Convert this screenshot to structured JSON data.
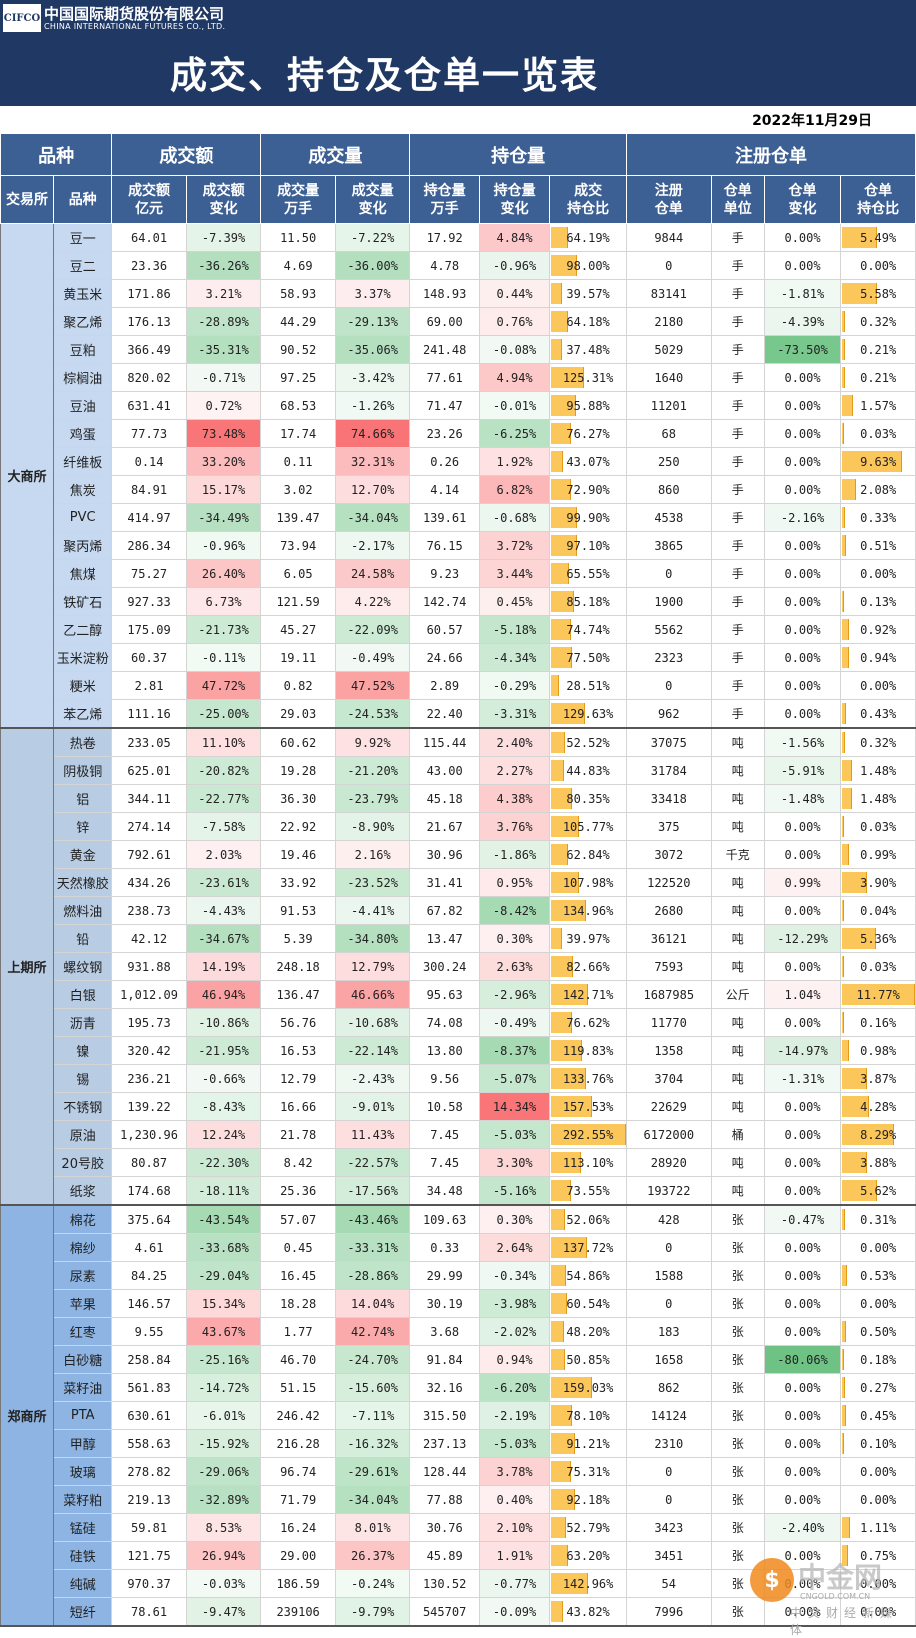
{
  "header": {
    "logo": "CIFCO",
    "company_cn": "中国国际期货股份有限公司",
    "company_en": "CHINA INTERNATIONAL FUTURES CO., LTD.",
    "title": "成交、持仓及仓单一览表",
    "date": "2022年11月29日"
  },
  "columns": {
    "group": [
      "品种",
      "成交额",
      "成交量",
      "持仓量",
      "注册仓单"
    ],
    "sub": [
      "交易所",
      "品种",
      "成交额\n亿元",
      "成交额\n变化",
      "成交量\n万手",
      "成交量\n变化",
      "持仓量\n万手",
      "持仓量\n变化",
      "成交\n持仓比",
      "注册\n仓单",
      "仓单\n单位",
      "仓单\n变化",
      "仓单\n持仓比"
    ]
  },
  "colors": {
    "header_bg": "#1f3864",
    "col_header_bg": "#3c5f94",
    "positive": "#f8696b",
    "negative": "#63be7b",
    "bar": "#fbc65a"
  },
  "watermark": {
    "brand": "中金网",
    "domain": "CNGOLD.COM.CN",
    "slogan": "中文财经新媒体"
  },
  "exchanges": [
    {
      "name": "大商所",
      "color": "#c6d9f1",
      "rows": [
        [
          "豆一",
          "64.01",
          "-7.39%",
          "11.50",
          "-7.22%",
          "17.92",
          "4.84%",
          "64.19%",
          "9844",
          "手",
          "0.00%",
          "5.49%"
        ],
        [
          "豆二",
          "23.36",
          "-36.26%",
          "4.69",
          "-36.00%",
          "4.78",
          "-0.96%",
          "98.00%",
          "0",
          "手",
          "0.00%",
          "0.00%"
        ],
        [
          "黄玉米",
          "171.86",
          "3.21%",
          "58.93",
          "3.37%",
          "148.93",
          "0.44%",
          "39.57%",
          "83141",
          "手",
          "-1.81%",
          "5.58%"
        ],
        [
          "聚乙烯",
          "176.13",
          "-28.89%",
          "44.29",
          "-29.13%",
          "69.00",
          "0.76%",
          "64.18%",
          "2180",
          "手",
          "-4.39%",
          "0.32%"
        ],
        [
          "豆粕",
          "366.49",
          "-35.31%",
          "90.52",
          "-35.06%",
          "241.48",
          "-0.08%",
          "37.48%",
          "5029",
          "手",
          "-73.50%",
          "0.21%"
        ],
        [
          "棕榈油",
          "820.02",
          "-0.71%",
          "97.25",
          "-3.42%",
          "77.61",
          "4.94%",
          "125.31%",
          "1640",
          "手",
          "0.00%",
          "0.21%"
        ],
        [
          "豆油",
          "631.41",
          "0.72%",
          "68.53",
          "-1.26%",
          "71.47",
          "-0.01%",
          "95.88%",
          "11201",
          "手",
          "0.00%",
          "1.57%"
        ],
        [
          "鸡蛋",
          "77.73",
          "73.48%",
          "17.74",
          "74.66%",
          "23.26",
          "-6.25%",
          "76.27%",
          "68",
          "手",
          "0.00%",
          "0.03%"
        ],
        [
          "纤维板",
          "0.14",
          "33.20%",
          "0.11",
          "32.31%",
          "0.26",
          "1.92%",
          "43.07%",
          "250",
          "手",
          "0.00%",
          "9.63%"
        ],
        [
          "焦炭",
          "84.91",
          "15.17%",
          "3.02",
          "12.70%",
          "4.14",
          "6.82%",
          "72.90%",
          "860",
          "手",
          "0.00%",
          "2.08%"
        ],
        [
          "PVC",
          "414.97",
          "-34.49%",
          "139.47",
          "-34.04%",
          "139.61",
          "-0.68%",
          "99.90%",
          "4538",
          "手",
          "-2.16%",
          "0.33%"
        ],
        [
          "聚丙烯",
          "286.34",
          "-0.96%",
          "73.94",
          "-2.17%",
          "76.15",
          "3.72%",
          "97.10%",
          "3865",
          "手",
          "0.00%",
          "0.51%"
        ],
        [
          "焦煤",
          "75.27",
          "26.40%",
          "6.05",
          "24.58%",
          "9.23",
          "3.44%",
          "65.55%",
          "0",
          "手",
          "0.00%",
          "0.00%"
        ],
        [
          "铁矿石",
          "927.33",
          "6.73%",
          "121.59",
          "4.22%",
          "142.74",
          "0.45%",
          "85.18%",
          "1900",
          "手",
          "0.00%",
          "0.13%"
        ],
        [
          "乙二醇",
          "175.09",
          "-21.73%",
          "45.27",
          "-22.09%",
          "60.57",
          "-5.18%",
          "74.74%",
          "5562",
          "手",
          "0.00%",
          "0.92%"
        ],
        [
          "玉米淀粉",
          "60.37",
          "-0.11%",
          "19.11",
          "-0.49%",
          "24.66",
          "-4.34%",
          "77.50%",
          "2323",
          "手",
          "0.00%",
          "0.94%"
        ],
        [
          "粳米",
          "2.81",
          "47.72%",
          "0.82",
          "47.52%",
          "2.89",
          "-0.29%",
          "28.51%",
          "0",
          "手",
          "0.00%",
          "0.00%"
        ],
        [
          "苯乙烯",
          "111.16",
          "-25.00%",
          "29.03",
          "-24.53%",
          "22.40",
          "-3.31%",
          "129.63%",
          "962",
          "手",
          "0.00%",
          "0.43%"
        ]
      ]
    },
    {
      "name": "上期所",
      "color": "#b8cce4",
      "rows": [
        [
          "热卷",
          "233.05",
          "11.10%",
          "60.62",
          "9.92%",
          "115.44",
          "2.40%",
          "52.52%",
          "37075",
          "吨",
          "-1.56%",
          "0.32%"
        ],
        [
          "阴极铜",
          "625.01",
          "-20.82%",
          "19.28",
          "-21.20%",
          "43.00",
          "2.27%",
          "44.83%",
          "31784",
          "吨",
          "-5.91%",
          "1.48%"
        ],
        [
          "铝",
          "344.11",
          "-22.77%",
          "36.30",
          "-23.79%",
          "45.18",
          "4.38%",
          "80.35%",
          "33418",
          "吨",
          "-1.48%",
          "1.48%"
        ],
        [
          "锌",
          "274.14",
          "-7.58%",
          "22.92",
          "-8.90%",
          "21.67",
          "3.76%",
          "105.77%",
          "375",
          "吨",
          "0.00%",
          "0.03%"
        ],
        [
          "黄金",
          "792.61",
          "2.03%",
          "19.46",
          "2.16%",
          "30.96",
          "-1.86%",
          "62.84%",
          "3072",
          "千克",
          "0.00%",
          "0.99%"
        ],
        [
          "天然橡胶",
          "434.26",
          "-23.61%",
          "33.92",
          "-23.52%",
          "31.41",
          "0.95%",
          "107.98%",
          "122520",
          "吨",
          "0.99%",
          "3.90%"
        ],
        [
          "燃料油",
          "238.73",
          "-4.43%",
          "91.53",
          "-4.41%",
          "67.82",
          "-8.42%",
          "134.96%",
          "2680",
          "吨",
          "0.00%",
          "0.04%"
        ],
        [
          "铅",
          "42.12",
          "-34.67%",
          "5.39",
          "-34.80%",
          "13.47",
          "0.30%",
          "39.97%",
          "36121",
          "吨",
          "-12.29%",
          "5.36%"
        ],
        [
          "螺纹钢",
          "931.88",
          "14.19%",
          "248.18",
          "12.79%",
          "300.24",
          "2.63%",
          "82.66%",
          "7593",
          "吨",
          "0.00%",
          "0.03%"
        ],
        [
          "白银",
          "1,012.09",
          "46.94%",
          "136.47",
          "46.66%",
          "95.63",
          "-2.96%",
          "142.71%",
          "1687985",
          "公斤",
          "1.04%",
          "11.77%"
        ],
        [
          "沥青",
          "195.73",
          "-10.86%",
          "56.76",
          "-10.68%",
          "74.08",
          "-0.49%",
          "76.62%",
          "11770",
          "吨",
          "0.00%",
          "0.16%"
        ],
        [
          "镍",
          "320.42",
          "-21.95%",
          "16.53",
          "-22.14%",
          "13.80",
          "-8.37%",
          "119.83%",
          "1358",
          "吨",
          "-14.97%",
          "0.98%"
        ],
        [
          "锡",
          "236.21",
          "-0.66%",
          "12.79",
          "-2.43%",
          "9.56",
          "-5.07%",
          "133.76%",
          "3704",
          "吨",
          "-1.31%",
          "3.87%"
        ],
        [
          "不锈钢",
          "139.22",
          "-8.43%",
          "16.66",
          "-9.01%",
          "10.58",
          "14.34%",
          "157.53%",
          "22629",
          "吨",
          "0.00%",
          "4.28%"
        ],
        [
          "原油",
          "1,230.96",
          "12.24%",
          "21.78",
          "11.43%",
          "7.45",
          "-5.03%",
          "292.55%",
          "6172000",
          "桶",
          "0.00%",
          "8.29%"
        ],
        [
          "20号胶",
          "80.87",
          "-22.30%",
          "8.42",
          "-22.57%",
          "7.45",
          "3.30%",
          "113.10%",
          "28920",
          "吨",
          "0.00%",
          "3.88%"
        ],
        [
          "纸浆",
          "174.68",
          "-18.11%",
          "25.36",
          "-17.56%",
          "34.48",
          "-5.16%",
          "73.55%",
          "193722",
          "吨",
          "0.00%",
          "5.62%"
        ]
      ]
    },
    {
      "name": "郑商所",
      "color": "#8db4e2",
      "rows": [
        [
          "棉花",
          "375.64",
          "-43.54%",
          "57.07",
          "-43.46%",
          "109.63",
          "0.30%",
          "52.06%",
          "428",
          "张",
          "-0.47%",
          "0.31%"
        ],
        [
          "棉纱",
          "4.61",
          "-33.68%",
          "0.45",
          "-33.31%",
          "0.33",
          "2.64%",
          "137.72%",
          "0",
          "张",
          "0.00%",
          "0.00%"
        ],
        [
          "尿素",
          "84.25",
          "-29.04%",
          "16.45",
          "-28.86%",
          "29.99",
          "-0.34%",
          "54.86%",
          "1588",
          "张",
          "0.00%",
          "0.53%"
        ],
        [
          "苹果",
          "146.57",
          "15.34%",
          "18.28",
          "14.04%",
          "30.19",
          "-3.98%",
          "60.54%",
          "0",
          "张",
          "0.00%",
          "0.00%"
        ],
        [
          "红枣",
          "9.55",
          "43.67%",
          "1.77",
          "42.74%",
          "3.68",
          "-2.02%",
          "48.20%",
          "183",
          "张",
          "0.00%",
          "0.50%"
        ],
        [
          "白砂糖",
          "258.84",
          "-25.16%",
          "46.70",
          "-24.70%",
          "91.84",
          "0.94%",
          "50.85%",
          "1658",
          "张",
          "-80.06%",
          "0.18%"
        ],
        [
          "菜籽油",
          "561.83",
          "-14.72%",
          "51.15",
          "-15.60%",
          "32.16",
          "-6.20%",
          "159.03%",
          "862",
          "张",
          "0.00%",
          "0.27%"
        ],
        [
          "PTA",
          "630.61",
          "-6.01%",
          "246.42",
          "-7.11%",
          "315.50",
          "-2.19%",
          "78.10%",
          "14124",
          "张",
          "0.00%",
          "0.45%"
        ],
        [
          "甲醇",
          "558.63",
          "-15.92%",
          "216.28",
          "-16.32%",
          "237.13",
          "-5.03%",
          "91.21%",
          "2310",
          "张",
          "0.00%",
          "0.10%"
        ],
        [
          "玻璃",
          "278.82",
          "-29.06%",
          "96.74",
          "-29.61%",
          "128.44",
          "3.78%",
          "75.31%",
          "0",
          "张",
          "0.00%",
          "0.00%"
        ],
        [
          "菜籽粕",
          "219.13",
          "-32.89%",
          "71.79",
          "-34.04%",
          "77.88",
          "0.40%",
          "92.18%",
          "0",
          "张",
          "0.00%",
          "0.00%"
        ],
        [
          "锰硅",
          "59.81",
          "8.53%",
          "16.24",
          "8.01%",
          "30.76",
          "2.10%",
          "52.79%",
          "3423",
          "张",
          "-2.40%",
          "1.11%"
        ],
        [
          "硅铁",
          "121.75",
          "26.94%",
          "29.00",
          "26.37%",
          "45.89",
          "1.91%",
          "63.20%",
          "3451",
          "张",
          "0.00%",
          "0.75%"
        ],
        [
          "纯碱",
          "970.37",
          "-0.03%",
          "186.59",
          "-0.24%",
          "130.52",
          "-0.77%",
          "142.96%",
          "54",
          "张",
          "0.00%",
          "0.00%"
        ],
        [
          "短纤",
          "78.61",
          "-9.47%",
          "239106",
          "-9.79%",
          "545707",
          "-0.09%",
          "43.82%",
          "7996",
          "张",
          "0.00%",
          "0.00%"
        ]
      ]
    }
  ]
}
